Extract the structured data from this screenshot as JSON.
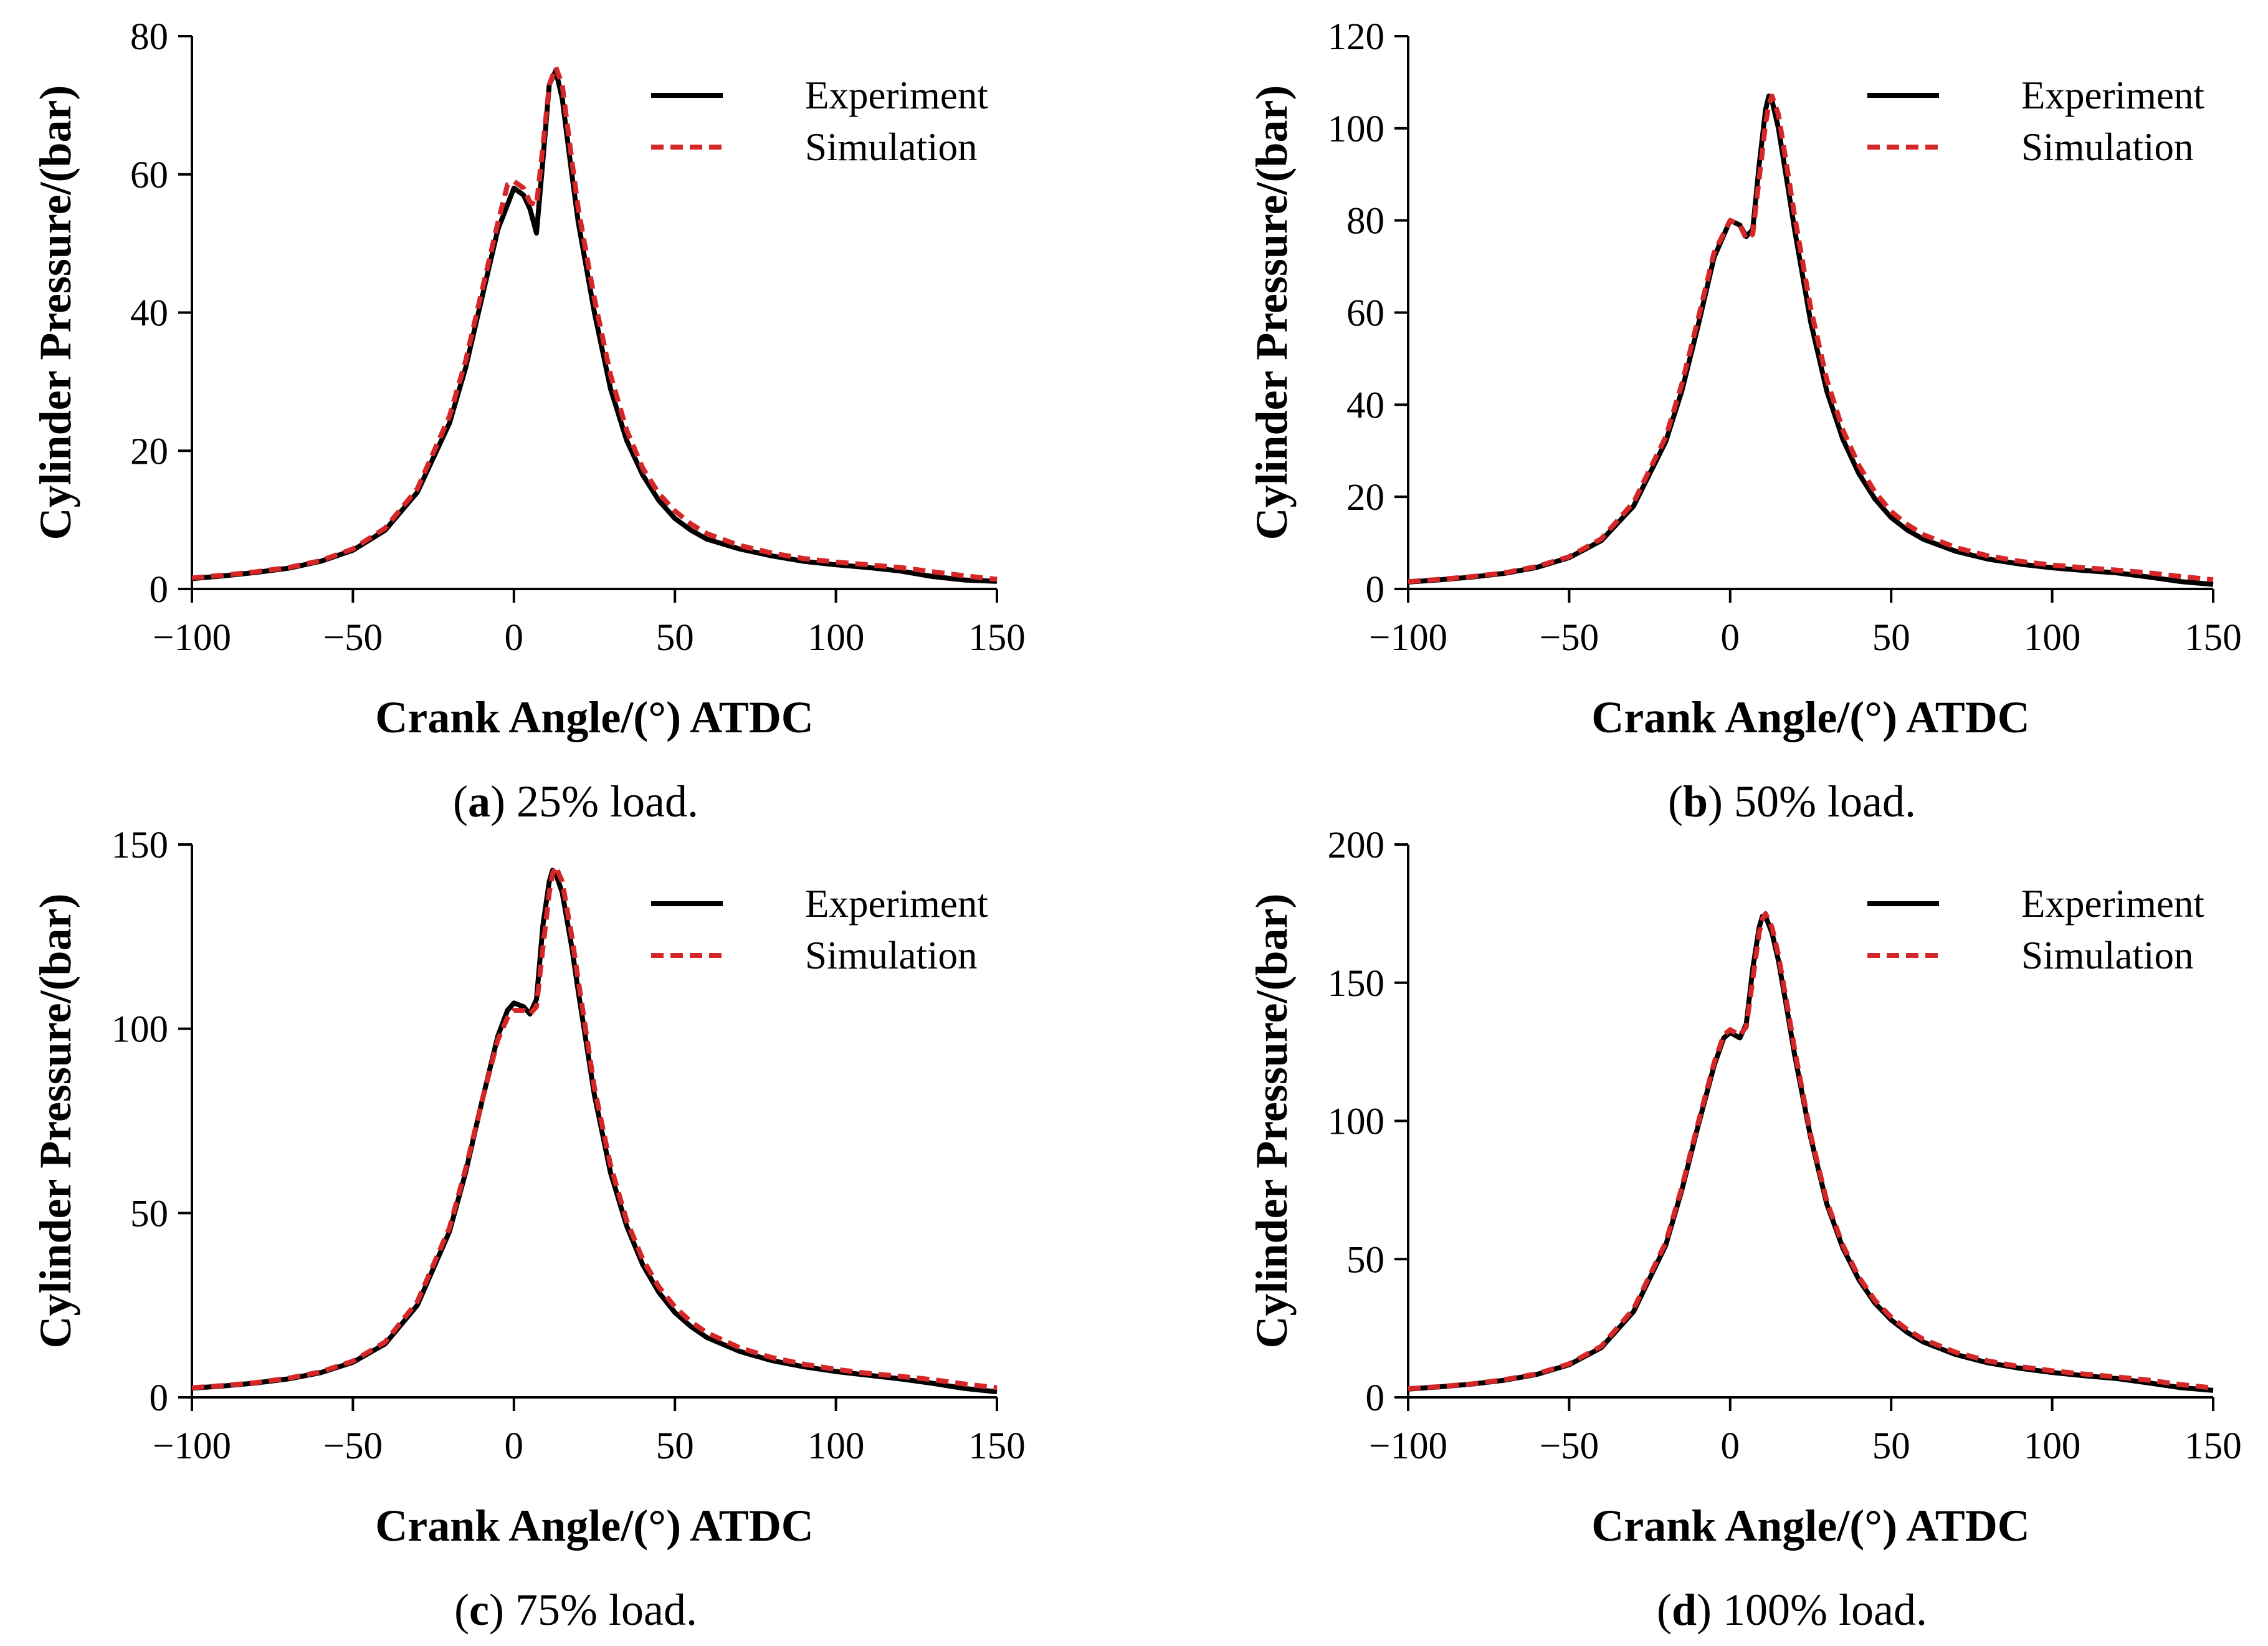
{
  "figure": {
    "series_colors": {
      "Experiment": "#000000",
      "Simulation": "#d62728"
    }
  },
  "chart_data": [
    {
      "type": "line",
      "panel_letter": "a",
      "caption_text": " 25% load.",
      "xlabel": "Crank Angle/(°) ATDC",
      "ylabel": "Cylinder Pressure/(bar)",
      "xlim": [
        -100,
        150
      ],
      "ylim": [
        0,
        80
      ],
      "xticks": [
        -100,
        -50,
        0,
        50,
        100,
        150
      ],
      "yticks": [
        0,
        20,
        40,
        60,
        80
      ],
      "xtick_labels": [
        "−100",
        "−50",
        "0",
        "50",
        "100",
        "150"
      ],
      "ytick_labels": [
        "0",
        "20",
        "40",
        "60",
        "80"
      ],
      "legend_position": "top-right",
      "series": [
        {
          "name": "Experiment",
          "style": "solid",
          "x": [
            -100,
            -90,
            -80,
            -70,
            -60,
            -50,
            -40,
            -30,
            -20,
            -15,
            -10,
            -5,
            0,
            3,
            5,
            7,
            9,
            11,
            13,
            15,
            18,
            20,
            25,
            30,
            35,
            40,
            45,
            50,
            55,
            60,
            70,
            80,
            90,
            100,
            110,
            120,
            130,
            140,
            150
          ],
          "y": [
            1.5,
            1.9,
            2.4,
            3.0,
            4.0,
            5.6,
            8.5,
            14.0,
            24.0,
            32.0,
            42.0,
            52.0,
            58.0,
            57.0,
            55.0,
            51.5,
            62.0,
            73.0,
            75.0,
            71.0,
            60.0,
            53.0,
            40.0,
            29.0,
            21.5,
            16.5,
            12.8,
            10.2,
            8.5,
            7.2,
            5.8,
            4.8,
            4.0,
            3.5,
            3.1,
            2.6,
            1.8,
            1.3,
            1.1
          ]
        },
        {
          "name": "Simulation",
          "style": "dashed",
          "x": [
            -100,
            -90,
            -80,
            -70,
            -60,
            -50,
            -40,
            -30,
            -20,
            -15,
            -10,
            -5,
            -2,
            0,
            3,
            5,
            7,
            9,
            11,
            13,
            15,
            18,
            20,
            25,
            30,
            35,
            40,
            45,
            50,
            55,
            60,
            70,
            80,
            90,
            100,
            110,
            120,
            130,
            140,
            150
          ],
          "y": [
            1.6,
            2.0,
            2.5,
            3.1,
            4.1,
            5.8,
            8.8,
            14.5,
            25.0,
            33.0,
            43.0,
            53.0,
            58.5,
            59.0,
            58.0,
            56.0,
            55.5,
            64.0,
            73.0,
            75.5,
            73.0,
            62.0,
            55.0,
            42.0,
            31.0,
            23.0,
            17.5,
            13.8,
            11.3,
            9.4,
            8.0,
            6.3,
            5.2,
            4.4,
            3.9,
            3.5,
            3.1,
            2.5,
            1.9,
            1.4
          ]
        }
      ]
    },
    {
      "type": "line",
      "panel_letter": "b",
      "caption_text": " 50% load.",
      "xlabel": "Crank Angle/(°) ATDC",
      "ylabel": "Cylinder Pressure/(bar)",
      "xlim": [
        -100,
        150
      ],
      "ylim": [
        0,
        120
      ],
      "xticks": [
        -100,
        -50,
        0,
        50,
        100,
        150
      ],
      "yticks": [
        0,
        20,
        40,
        60,
        80,
        100,
        120
      ],
      "xtick_labels": [
        "−100",
        "−50",
        "0",
        "50",
        "100",
        "150"
      ],
      "ytick_labels": [
        "0",
        "20",
        "40",
        "60",
        "80",
        "100",
        "120"
      ],
      "legend_position": "top-right",
      "series": [
        {
          "name": "Experiment",
          "style": "solid",
          "x": [
            -100,
            -90,
            -80,
            -70,
            -60,
            -50,
            -40,
            -30,
            -20,
            -15,
            -10,
            -5,
            0,
            3,
            5,
            7,
            9,
            11,
            12,
            13,
            15,
            18,
            20,
            25,
            30,
            35,
            40,
            45,
            50,
            55,
            60,
            70,
            80,
            90,
            100,
            110,
            120,
            130,
            140,
            150
          ],
          "y": [
            1.5,
            2.0,
            2.6,
            3.4,
            4.7,
            6.8,
            10.5,
            18.0,
            32.0,
            43.0,
            57.0,
            72.0,
            80.0,
            79.0,
            76.5,
            78.0,
            92.0,
            104.0,
            107.0,
            106.0,
            100.0,
            87.0,
            78.0,
            58.0,
            43.0,
            32.5,
            25.0,
            19.5,
            15.5,
            12.8,
            10.8,
            8.2,
            6.5,
            5.4,
            4.6,
            4.0,
            3.5,
            2.6,
            1.6,
            1.0
          ]
        },
        {
          "name": "Simulation",
          "style": "dashed",
          "x": [
            -100,
            -90,
            -80,
            -70,
            -60,
            -50,
            -40,
            -30,
            -20,
            -15,
            -10,
            -5,
            0,
            3,
            5,
            7,
            9,
            11,
            12,
            13,
            15,
            18,
            20,
            25,
            30,
            35,
            40,
            45,
            50,
            55,
            60,
            70,
            80,
            90,
            100,
            110,
            120,
            130,
            140,
            150
          ],
          "y": [
            1.6,
            2.1,
            2.7,
            3.5,
            4.9,
            7.0,
            10.9,
            18.8,
            33.0,
            44.5,
            58.5,
            73.0,
            80.0,
            79.0,
            76.0,
            77.0,
            89.0,
            101.0,
            105.0,
            107.0,
            103.0,
            90.0,
            81.0,
            61.0,
            45.5,
            34.5,
            26.8,
            21.0,
            16.8,
            14.0,
            11.8,
            9.0,
            7.2,
            6.0,
            5.2,
            4.6,
            4.1,
            3.5,
            2.7,
            2.0
          ]
        }
      ]
    },
    {
      "type": "line",
      "panel_letter": "c",
      "caption_text": " 75% load.",
      "xlabel": "Crank Angle/(°) ATDC",
      "ylabel": "Cylinder Pressure/(bar)",
      "xlim": [
        -100,
        150
      ],
      "ylim": [
        0,
        150
      ],
      "xticks": [
        -100,
        -50,
        0,
        50,
        100,
        150
      ],
      "yticks": [
        0,
        50,
        100,
        150
      ],
      "xtick_labels": [
        "−100",
        "−50",
        "0",
        "50",
        "100",
        "150"
      ],
      "ytick_labels": [
        "0",
        "50",
        "100",
        "150"
      ],
      "legend_position": "top-right",
      "series": [
        {
          "name": "Experiment",
          "style": "solid",
          "x": [
            -100,
            -90,
            -80,
            -70,
            -60,
            -50,
            -40,
            -30,
            -20,
            -15,
            -10,
            -5,
            -2,
            0,
            3,
            5,
            7,
            9,
            11,
            12,
            13,
            15,
            18,
            20,
            25,
            30,
            35,
            40,
            45,
            50,
            55,
            60,
            70,
            80,
            90,
            100,
            110,
            120,
            130,
            140,
            150
          ],
          "y": [
            2.5,
            3.1,
            3.9,
            5.0,
            6.7,
            9.5,
            14.5,
            25.0,
            45.0,
            61.0,
            80.0,
            98.0,
            105.0,
            107.0,
            106.0,
            104.0,
            108.0,
            128.0,
            140.0,
            143.0,
            142.0,
            137.0,
            122.0,
            110.0,
            82.0,
            61.0,
            46.5,
            36.0,
            28.5,
            23.0,
            19.2,
            16.2,
            12.5,
            10.0,
            8.3,
            7.0,
            6.0,
            5.0,
            3.8,
            2.4,
            1.5
          ]
        },
        {
          "name": "Simulation",
          "style": "dashed",
          "x": [
            -100,
            -90,
            -80,
            -70,
            -60,
            -50,
            -40,
            -30,
            -20,
            -15,
            -10,
            -5,
            -2,
            0,
            3,
            5,
            7,
            9,
            11,
            12,
            13,
            15,
            18,
            20,
            25,
            30,
            35,
            40,
            45,
            50,
            55,
            60,
            70,
            80,
            90,
            100,
            110,
            120,
            130,
            140,
            150
          ],
          "y": [
            2.6,
            3.2,
            4.0,
            5.2,
            6.9,
            9.8,
            15.0,
            26.0,
            46.0,
            62.0,
            80.0,
            97.0,
            103.0,
            105.0,
            105.0,
            104.0,
            106.0,
            122.0,
            137.0,
            142.0,
            144.0,
            140.0,
            125.0,
            113.0,
            84.0,
            63.0,
            48.0,
            37.5,
            30.0,
            24.5,
            20.5,
            17.5,
            13.5,
            10.8,
            9.0,
            7.6,
            6.5,
            5.7,
            4.8,
            3.6,
            2.6
          ]
        }
      ]
    },
    {
      "type": "line",
      "panel_letter": "d",
      "caption_text": " 100% load.",
      "xlabel": "Crank Angle/(°) ATDC",
      "ylabel": "Cylinder Pressure/(bar)",
      "xlim": [
        -100,
        150
      ],
      "ylim": [
        0,
        200
      ],
      "xticks": [
        -100,
        -50,
        0,
        50,
        100,
        150
      ],
      "yticks": [
        0,
        50,
        100,
        150,
        200
      ],
      "xtick_labels": [
        "−100",
        "−50",
        "0",
        "50",
        "100",
        "150"
      ],
      "ytick_labels": [
        "0",
        "50",
        "100",
        "150",
        "200"
      ],
      "legend_position": "top-right",
      "series": [
        {
          "name": "Experiment",
          "style": "solid",
          "x": [
            -100,
            -90,
            -80,
            -70,
            -60,
            -50,
            -40,
            -30,
            -20,
            -15,
            -10,
            -5,
            -2,
            0,
            3,
            5,
            7,
            9,
            10,
            11,
            13,
            15,
            18,
            20,
            25,
            30,
            35,
            40,
            45,
            50,
            55,
            60,
            70,
            80,
            90,
            100,
            110,
            120,
            130,
            140,
            150
          ],
          "y": [
            3.0,
            3.8,
            4.8,
            6.2,
            8.3,
            11.8,
            18.0,
            31.0,
            55.0,
            75.0,
            98.0,
            120.0,
            130.0,
            132.0,
            130.0,
            135.0,
            155.0,
            170.0,
            174.0,
            174.0,
            168.0,
            158.0,
            138.0,
            124.0,
            94.0,
            70.0,
            54.0,
            42.5,
            34.0,
            28.0,
            23.5,
            20.0,
            15.5,
            12.5,
            10.5,
            9.0,
            7.8,
            6.8,
            5.2,
            3.5,
            2.5
          ]
        },
        {
          "name": "Simulation",
          "style": "dashed",
          "x": [
            -100,
            -90,
            -80,
            -70,
            -60,
            -50,
            -40,
            -30,
            -20,
            -15,
            -10,
            -5,
            -2,
            0,
            3,
            5,
            7,
            9,
            10,
            11,
            13,
            15,
            18,
            20,
            25,
            30,
            35,
            40,
            45,
            50,
            55,
            60,
            70,
            80,
            90,
            100,
            110,
            120,
            130,
            140,
            150
          ],
          "y": [
            3.1,
            3.9,
            4.9,
            6.4,
            8.5,
            12.1,
            18.5,
            32.0,
            56.0,
            76.0,
            99.0,
            121.0,
            131.0,
            133.0,
            131.0,
            134.0,
            151.0,
            168.0,
            173.0,
            175.0,
            170.0,
            160.0,
            140.0,
            126.0,
            95.0,
            71.0,
            55.0,
            43.5,
            35.0,
            29.0,
            24.5,
            21.0,
            16.3,
            13.2,
            11.1,
            9.6,
            8.4,
            7.4,
            6.2,
            4.6,
            3.4
          ]
        }
      ]
    }
  ]
}
